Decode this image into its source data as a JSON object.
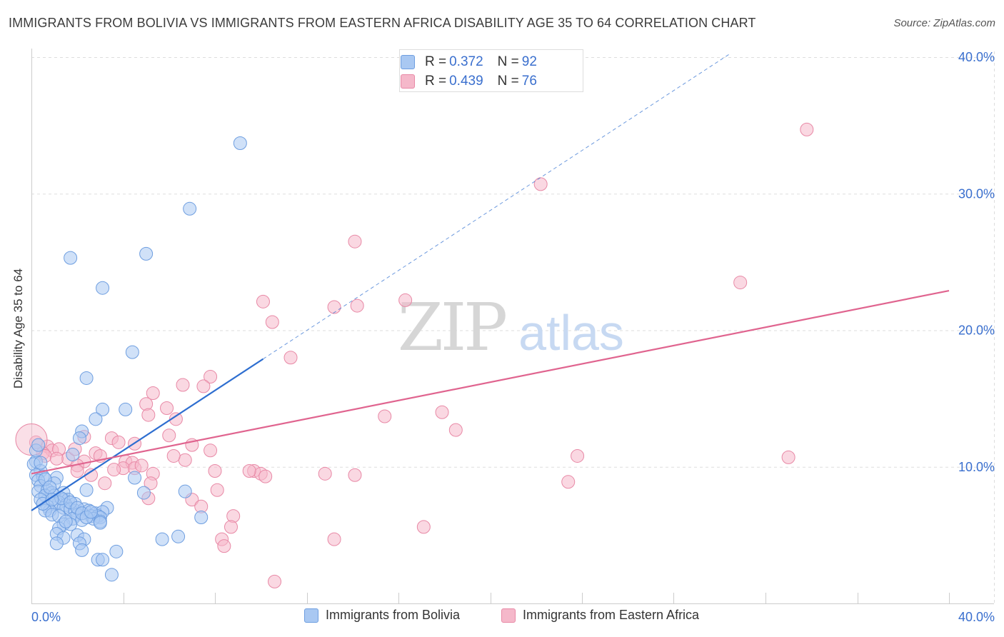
{
  "title": "IMMIGRANTS FROM BOLIVIA VS IMMIGRANTS FROM EASTERN AFRICA DISABILITY AGE 35 TO 64 CORRELATION CHART",
  "source": "Source: ZipAtlas.com",
  "watermark": {
    "zip": "ZIP",
    "atlas": "atlas"
  },
  "colors": {
    "blue_fill": "#a9c8f2",
    "blue_stroke": "#6e9ee0",
    "blue_line": "#2e6ed0",
    "pink_fill": "#f5b8ca",
    "pink_stroke": "#e889a6",
    "pink_line": "#e0648f",
    "axis_text": "#3a6fce",
    "grid": "#dddddd"
  },
  "stats": {
    "bolivia": {
      "r_label": "R = ",
      "r_value": "0.372",
      "n_label": "N = ",
      "n_value": "92"
    },
    "eastern_africa": {
      "r_label": "R = ",
      "r_value": "0.439",
      "n_label": "N = ",
      "n_value": "76"
    }
  },
  "legend": {
    "bolivia": "Immigrants from Bolivia",
    "eastern_africa": "Immigrants from Eastern Africa"
  },
  "chart_data": {
    "type": "scatter",
    "title": "IMMIGRANTS FROM BOLIVIA VS IMMIGRANTS FROM EASTERN AFRICA DISABILITY AGE 35 TO 64 CORRELATION CHART",
    "xlabel": "",
    "ylabel": "Disability Age 35 to 64",
    "xlim": [
      0,
      40
    ],
    "ylim": [
      0,
      40
    ],
    "x_tick_labels": [
      "0.0%",
      "40.0%"
    ],
    "y_ticks": [
      10,
      20,
      30,
      40
    ],
    "y_tick_labels": [
      "10.0%",
      "20.0%",
      "30.0%",
      "40.0%"
    ],
    "grid": true,
    "series": [
      {
        "name": "Immigrants from Bolivia",
        "r": 0.372,
        "n": 92,
        "trend": {
          "x": [
            0,
            10.1
          ],
          "y": [
            6.8,
            17.9
          ],
          "dashed_to": [
            30.5,
            40.3
          ]
        },
        "points": [
          [
            9.1,
            33.7
          ],
          [
            6.9,
            28.9
          ],
          [
            1.7,
            25.3
          ],
          [
            5.0,
            25.6
          ],
          [
            3.1,
            23.1
          ],
          [
            4.4,
            18.4
          ],
          [
            2.4,
            16.5
          ],
          [
            3.1,
            14.2
          ],
          [
            4.1,
            14.2
          ],
          [
            2.8,
            13.5
          ],
          [
            2.2,
            12.6
          ],
          [
            2.1,
            12.1
          ],
          [
            0.2,
            10.4
          ],
          [
            0.1,
            10.2
          ],
          [
            1.8,
            10.9
          ],
          [
            0.4,
            9.7
          ],
          [
            0.2,
            9.4
          ],
          [
            0.5,
            9.3
          ],
          [
            1.1,
            9.2
          ],
          [
            0.3,
            9.0
          ],
          [
            1.0,
            8.8
          ],
          [
            0.4,
            8.6
          ],
          [
            0.3,
            8.2
          ],
          [
            0.7,
            8.3
          ],
          [
            1.4,
            8.1
          ],
          [
            2.4,
            8.3
          ],
          [
            0.9,
            8.1
          ],
          [
            0.6,
            7.9
          ],
          [
            1.0,
            7.9
          ],
          [
            1.4,
            7.6
          ],
          [
            1.6,
            7.6
          ],
          [
            0.4,
            7.6
          ],
          [
            1.2,
            7.4
          ],
          [
            1.9,
            7.3
          ],
          [
            1.5,
            7.2
          ],
          [
            1.0,
            7.3
          ],
          [
            0.7,
            7.1
          ],
          [
            1.4,
            7.0
          ],
          [
            1.7,
            6.9
          ],
          [
            1.9,
            6.8
          ],
          [
            0.8,
            6.8
          ],
          [
            0.6,
            6.8
          ],
          [
            2.3,
            6.9
          ],
          [
            2.5,
            6.8
          ],
          [
            3.3,
            7.0
          ],
          [
            2.8,
            6.6
          ],
          [
            3.1,
            6.7
          ],
          [
            2.0,
            6.5
          ],
          [
            0.9,
            6.5
          ],
          [
            1.2,
            6.4
          ],
          [
            1.8,
            6.2
          ],
          [
            2.6,
            6.4
          ],
          [
            2.9,
            6.4
          ],
          [
            3.0,
            6.3
          ],
          [
            2.2,
            6.1
          ],
          [
            2.7,
            6.2
          ],
          [
            3.0,
            6.0
          ],
          [
            3.0,
            5.9
          ],
          [
            1.4,
            5.8
          ],
          [
            1.7,
            5.8
          ],
          [
            1.2,
            5.5
          ],
          [
            1.1,
            5.1
          ],
          [
            2.0,
            5.0
          ],
          [
            1.4,
            4.8
          ],
          [
            2.3,
            4.7
          ],
          [
            2.1,
            4.4
          ],
          [
            1.1,
            4.4
          ],
          [
            2.2,
            3.9
          ],
          [
            3.7,
            3.8
          ],
          [
            2.9,
            3.2
          ],
          [
            3.1,
            3.2
          ],
          [
            3.5,
            2.1
          ],
          [
            5.7,
            4.7
          ],
          [
            6.4,
            4.9
          ],
          [
            6.7,
            8.2
          ],
          [
            7.4,
            6.3
          ],
          [
            4.5,
            9.2
          ],
          [
            4.9,
            8.1
          ],
          [
            0.2,
            11.2
          ],
          [
            0.3,
            11.6
          ],
          [
            0.4,
            10.3
          ],
          [
            0.6,
            9.1
          ],
          [
            0.8,
            8.5
          ],
          [
            1.3,
            7.7
          ],
          [
            1.7,
            7.4
          ],
          [
            2.0,
            7.0
          ],
          [
            2.2,
            6.6
          ],
          [
            2.4,
            6.3
          ],
          [
            2.6,
            6.7
          ],
          [
            0.5,
            7.3
          ],
          [
            0.9,
            7.6
          ],
          [
            1.5,
            6.0
          ]
        ]
      },
      {
        "name": "Immigrants from Eastern Africa",
        "r": 0.439,
        "n": 76,
        "trend": {
          "x": [
            0,
            40
          ],
          "y": [
            9.5,
            22.9
          ]
        },
        "points": [
          [
            33.8,
            34.7
          ],
          [
            22.2,
            30.7
          ],
          [
            14.1,
            26.5
          ],
          [
            30.9,
            23.5
          ],
          [
            10.1,
            22.1
          ],
          [
            13.2,
            21.7
          ],
          [
            14.2,
            21.8
          ],
          [
            16.3,
            22.2
          ],
          [
            10.5,
            20.6
          ],
          [
            11.3,
            18.0
          ],
          [
            7.8,
            16.6
          ],
          [
            6.6,
            16.0
          ],
          [
            7.5,
            15.9
          ],
          [
            5.3,
            15.4
          ],
          [
            5.0,
            14.6
          ],
          [
            5.9,
            14.3
          ],
          [
            5.1,
            13.8
          ],
          [
            6.3,
            13.5
          ],
          [
            15.4,
            13.7
          ],
          [
            17.9,
            14.0
          ],
          [
            18.5,
            12.7
          ],
          [
            6.0,
            12.3
          ],
          [
            3.5,
            12.1
          ],
          [
            4.5,
            11.7
          ],
          [
            0.2,
            11.8
          ],
          [
            0.7,
            11.5
          ],
          [
            0.9,
            11.2
          ],
          [
            1.2,
            11.3
          ],
          [
            0.5,
            11.0
          ],
          [
            2.8,
            11.0
          ],
          [
            7.0,
            11.6
          ],
          [
            7.8,
            11.2
          ],
          [
            3.0,
            10.8
          ],
          [
            2.3,
            12.2
          ],
          [
            2.3,
            10.4
          ],
          [
            1.6,
            10.6
          ],
          [
            0.6,
            10.8
          ],
          [
            4.1,
            10.4
          ],
          [
            4.4,
            10.3
          ],
          [
            4.0,
            9.9
          ],
          [
            6.7,
            10.5
          ],
          [
            2.0,
            10.1
          ],
          [
            4.5,
            9.9
          ],
          [
            3.6,
            9.8
          ],
          [
            2.6,
            9.4
          ],
          [
            5.3,
            9.5
          ],
          [
            9.7,
            9.7
          ],
          [
            10.0,
            9.5
          ],
          [
            10.2,
            9.3
          ],
          [
            12.8,
            9.5
          ],
          [
            14.1,
            9.4
          ],
          [
            23.8,
            10.8
          ],
          [
            33.0,
            10.7
          ],
          [
            23.4,
            8.9
          ],
          [
            5.2,
            8.8
          ],
          [
            3.2,
            8.8
          ],
          [
            8.1,
            8.3
          ],
          [
            7.0,
            7.6
          ],
          [
            5.1,
            7.7
          ],
          [
            7.4,
            7.1
          ],
          [
            8.8,
            6.4
          ],
          [
            8.7,
            5.6
          ],
          [
            17.1,
            5.6
          ],
          [
            8.3,
            4.7
          ],
          [
            13.2,
            4.7
          ],
          [
            8.4,
            4.2
          ],
          [
            10.6,
            1.6
          ],
          [
            1.1,
            10.6
          ],
          [
            1.9,
            11.3
          ],
          [
            3.8,
            11.8
          ],
          [
            4.8,
            10.1
          ],
          [
            6.2,
            10.8
          ],
          [
            8.0,
            9.7
          ],
          [
            9.5,
            9.7
          ],
          [
            2.0,
            9.7
          ],
          [
            0.0,
            12.0
          ]
        ]
      }
    ]
  }
}
